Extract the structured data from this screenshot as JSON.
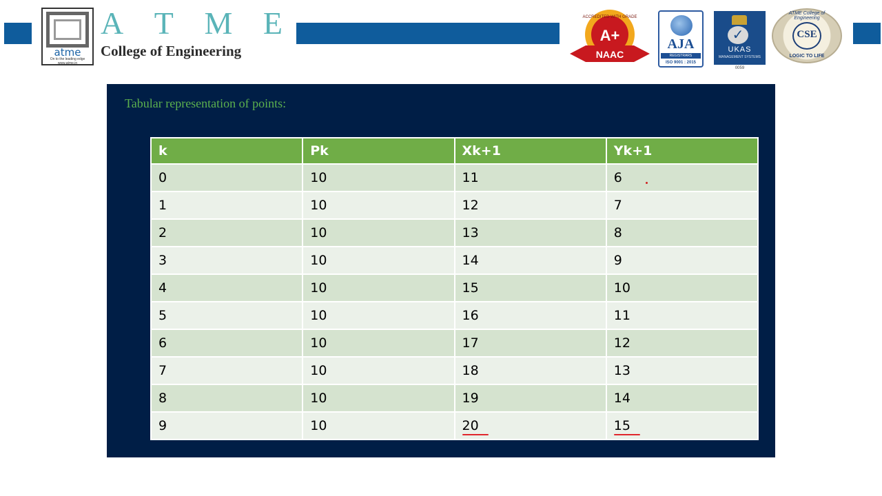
{
  "header": {
    "logo_word": "atme",
    "logo_tagline": "On to the leading edge\nwww.atme.in",
    "brand_letters": [
      "A",
      "T",
      "M",
      "E"
    ],
    "college_name": "College of Engineering",
    "accent_color": "#0f5c9c"
  },
  "badges": {
    "naac": {
      "grade": "A+",
      "label": "NAAC",
      "ring_text": "ACCREDITED WITH GRADE"
    },
    "aja": {
      "name": "AJA",
      "sub": "REGISTRARS",
      "iso": "ISO 9001 : 2015"
    },
    "ukas": {
      "name": "UKAS",
      "sub": "MANAGEMENT SYSTEMS",
      "number": "0059"
    },
    "cse": {
      "name": "CSE",
      "ring_top": "ATME College of Engineering",
      "ring_bottom": "LOGIC TO LIFE"
    }
  },
  "slide": {
    "heading": "Tabular representation of points:",
    "background_color": "#001e46",
    "heading_color": "#5cb04e"
  },
  "table": {
    "header_color": "#70ad47",
    "columns": [
      "k",
      "Pk",
      "Xk+1",
      "Yk+1"
    ],
    "rows": [
      [
        "0",
        "10",
        "11",
        "6"
      ],
      [
        "1",
        "10",
        "12",
        "7"
      ],
      [
        "2",
        "10",
        "13",
        "8"
      ],
      [
        "3",
        "10",
        "14",
        "9"
      ],
      [
        "4",
        "10",
        "15",
        "10"
      ],
      [
        "5",
        "10",
        "16",
        "11"
      ],
      [
        "6",
        "10",
        "17",
        "12"
      ],
      [
        "7",
        "10",
        "18",
        "13"
      ],
      [
        "8",
        "10",
        "19",
        "14"
      ],
      [
        "9",
        "10",
        "20",
        "15"
      ]
    ],
    "annotations": {
      "underlined_cells": [
        [
          9,
          2
        ],
        [
          9,
          3
        ]
      ],
      "annotation_color": "#e0262c"
    }
  }
}
